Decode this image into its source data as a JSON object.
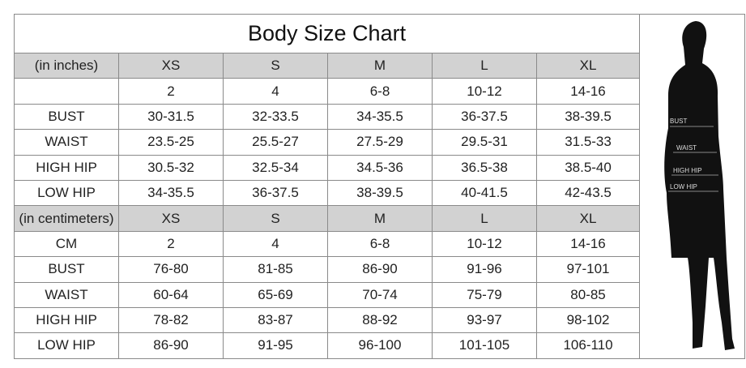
{
  "title": "Body Size Chart",
  "inches": {
    "header": [
      "(in inches)",
      "XS",
      "S",
      "M",
      "L",
      "XL"
    ],
    "rows": [
      [
        "",
        "2",
        "4",
        "6-8",
        "10-12",
        "14-16"
      ],
      [
        "BUST",
        "30-31.5",
        "32-33.5",
        "34-35.5",
        "36-37.5",
        "38-39.5"
      ],
      [
        "WAIST",
        "23.5-25",
        "25.5-27",
        "27.5-29",
        "29.5-31",
        "31.5-33"
      ],
      [
        "HIGH HIP",
        "30.5-32",
        "32.5-34",
        "34.5-36",
        "36.5-38",
        "38.5-40"
      ],
      [
        "LOW HIP",
        "34-35.5",
        "36-37.5",
        "38-39.5",
        "40-41.5",
        "42-43.5"
      ]
    ]
  },
  "centimeters": {
    "header": [
      "(in centimeters)",
      "XS",
      "S",
      "M",
      "L",
      "XL"
    ],
    "rows": [
      [
        "CM",
        "2",
        "4",
        "6-8",
        "10-12",
        "14-16"
      ],
      [
        "BUST",
        "76-80",
        "81-85",
        "86-90",
        "91-96",
        "97-101"
      ],
      [
        "WAIST",
        "60-64",
        "65-69",
        "70-74",
        "75-79",
        "80-85"
      ],
      [
        "HIGH HIP",
        "78-82",
        "83-87",
        "88-92",
        "93-97",
        "98-102"
      ],
      [
        "LOW HIP",
        "86-90",
        "91-95",
        "96-100",
        "101-105",
        "106-110"
      ]
    ]
  },
  "figure": {
    "labels": [
      "BUST",
      "WAIST",
      "HIGH HIP",
      "LOW HIP"
    ]
  }
}
